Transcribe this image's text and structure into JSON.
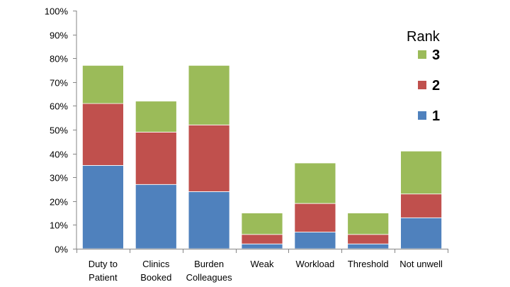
{
  "chart_data": {
    "type": "bar",
    "stacked": true,
    "categories": [
      [
        "Duty to",
        "Patient"
      ],
      [
        "Clinics",
        "Booked"
      ],
      [
        "Burden",
        "Colleagues"
      ],
      [
        "Weak"
      ],
      [
        "Workload"
      ],
      [
        "Threshold"
      ],
      [
        "Not unwell"
      ]
    ],
    "series": [
      {
        "name": "1",
        "color": "#4F81BD",
        "values": [
          35,
          27,
          24,
          2,
          7,
          2,
          13
        ]
      },
      {
        "name": "2",
        "color": "#C0504D",
        "values": [
          26,
          22,
          28,
          4,
          12,
          4,
          10
        ]
      },
      {
        "name": "3",
        "color": "#9BBB59",
        "values": [
          16,
          13,
          25,
          9,
          17,
          9,
          18
        ]
      }
    ],
    "ylim": [
      0,
      100
    ],
    "ytick_step": 10,
    "ytick_suffix": "%",
    "legend": {
      "title": "Rank",
      "placement": "top-right",
      "order": [
        "3",
        "2",
        "1"
      ]
    },
    "title": "",
    "xlabel": "",
    "ylabel": ""
  }
}
